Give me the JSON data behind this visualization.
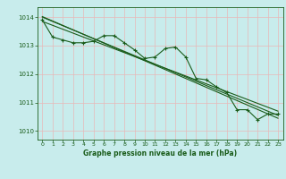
{
  "title": "Graphe pression niveau de la mer (hPa)",
  "background_color": "#c8ecec",
  "grid_color": "#e8b8b8",
  "line_color": "#1a5c1a",
  "xlim": [
    -0.5,
    23.5
  ],
  "ylim": [
    1009.7,
    1014.35
  ],
  "yticks": [
    1010,
    1011,
    1012,
    1013,
    1014
  ],
  "xticks": [
    0,
    1,
    2,
    3,
    4,
    5,
    6,
    7,
    8,
    9,
    10,
    11,
    12,
    13,
    14,
    15,
    16,
    17,
    18,
    19,
    20,
    21,
    22,
    23
  ],
  "hours": [
    0,
    1,
    2,
    3,
    4,
    5,
    6,
    7,
    8,
    9,
    10,
    11,
    12,
    13,
    14,
    15,
    16,
    17,
    18,
    19,
    20,
    21,
    22,
    23
  ],
  "pressure": [
    1013.9,
    1013.3,
    1013.2,
    1013.1,
    1013.1,
    1013.15,
    1013.35,
    1013.35,
    1013.1,
    1012.85,
    1012.55,
    1012.6,
    1012.9,
    1012.95,
    1012.6,
    1011.85,
    1011.8,
    1011.55,
    1011.35,
    1010.75,
    1010.75,
    1010.4,
    1010.6,
    1010.6
  ],
  "trend1_x": [
    0,
    23
  ],
  "trend1_y": [
    1014.0,
    1010.55
  ],
  "trend2_x": [
    0,
    23
  ],
  "trend2_y": [
    1013.85,
    1010.7
  ],
  "trend3_x": [
    0,
    23
  ],
  "trend3_y": [
    1014.02,
    1010.45
  ]
}
